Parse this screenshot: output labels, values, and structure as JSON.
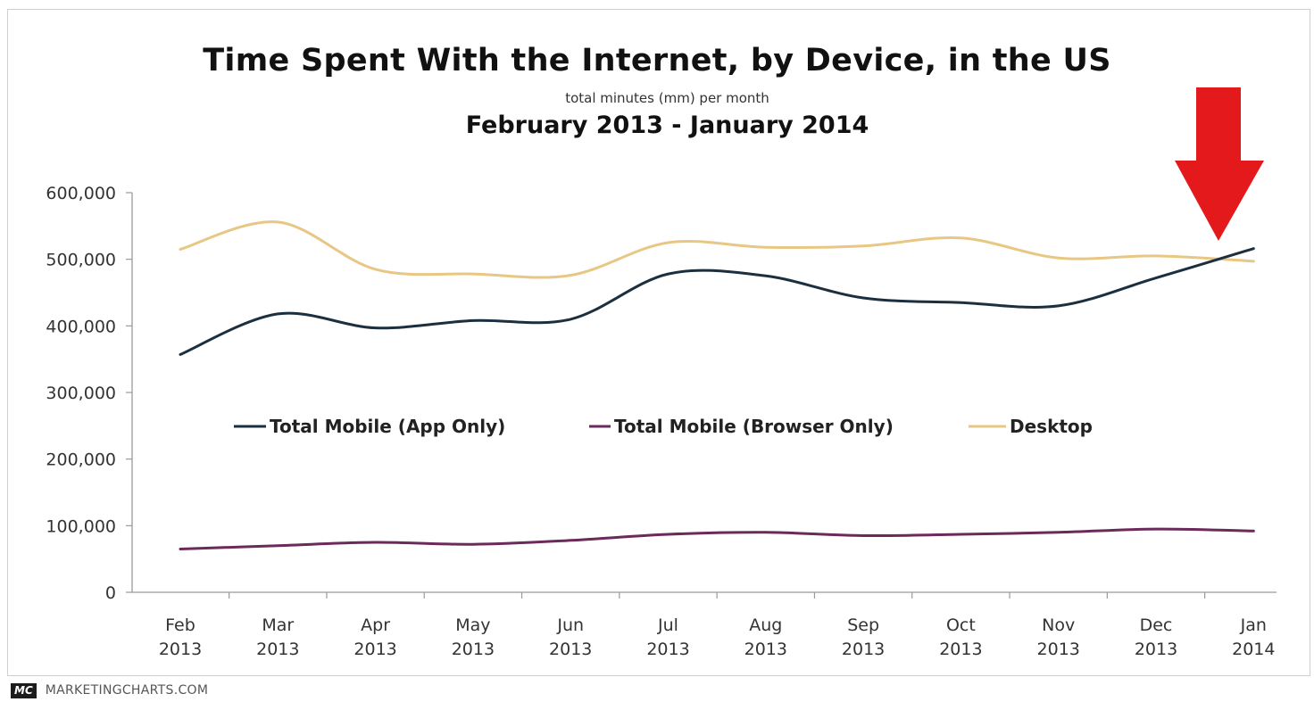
{
  "header": {
    "title": "Time Spent With the Internet, by Device, in the US",
    "subtitle": "total minutes (mm) per month",
    "period": "February 2013 - January 2014"
  },
  "footer": {
    "logo_text": "MC",
    "source": "MARKETINGCHARTS.COM"
  },
  "annotation": {
    "icon": "arrow-down-icon",
    "color": "#e3191b"
  },
  "chart_data": {
    "type": "line",
    "title": "Time Spent With the Internet, by Device, in the US",
    "subtitle": "total minutes (mm) per month",
    "xlabel": "",
    "ylabel": "",
    "categories": [
      [
        "Feb",
        "2013"
      ],
      [
        "Mar",
        "2013"
      ],
      [
        "Apr",
        "2013"
      ],
      [
        "May",
        "2013"
      ],
      [
        "Jun",
        "2013"
      ],
      [
        "Jul",
        "2013"
      ],
      [
        "Aug",
        "2013"
      ],
      [
        "Sep",
        "2013"
      ],
      [
        "Oct",
        "2013"
      ],
      [
        "Nov",
        "2013"
      ],
      [
        "Dec",
        "2013"
      ],
      [
        "Jan",
        "2014"
      ]
    ],
    "ylim": [
      0,
      600000
    ],
    "yticks": [
      "0",
      "100,000",
      "200,000",
      "300,000",
      "400,000",
      "500,000",
      "600,000"
    ],
    "grid": false,
    "legend_position": "center",
    "series": [
      {
        "name": "Total Mobile (App Only)",
        "color": "#1b2f3f",
        "values": [
          357000,
          418000,
          397000,
          408000,
          410000,
          478000,
          475000,
          442000,
          435000,
          430000,
          472000,
          516000
        ]
      },
      {
        "name": "Total Mobile (Browser Only)",
        "color": "#6b2a5a",
        "values": [
          65000,
          70000,
          75000,
          72000,
          78000,
          87000,
          90000,
          85000,
          87000,
          90000,
          95000,
          92000
        ]
      },
      {
        "name": "Desktop",
        "color": "#e8c785",
        "values": [
          515000,
          556000,
          485000,
          478000,
          476000,
          525000,
          518000,
          520000,
          532000,
          502000,
          505000,
          497000
        ]
      }
    ]
  }
}
